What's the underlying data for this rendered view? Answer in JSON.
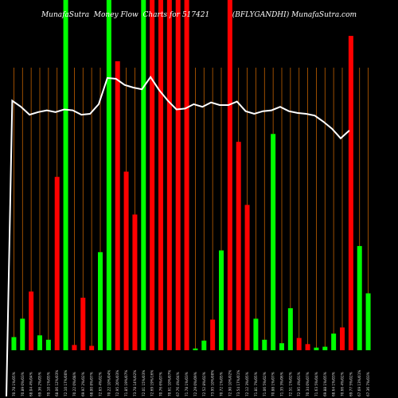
{
  "header": {
    "site": "MunafaSutra",
    "chart_title": "Money Flow  Charts for 517421",
    "symbol": "(BFLYGANDHI) MunafaSutra.com"
  },
  "chart_data": {
    "type": "bar",
    "title": "MunafaSutra  Money Flow  Charts for 517421",
    "subtitle": "(BFLYGANDHI) MunafaSutra.com",
    "xlabel": "",
    "ylabel": "",
    "grid": true,
    "legend": "none",
    "colors": {
      "up": "#00ff00",
      "down": "#ff0000",
      "line": "#ffffff",
      "grid": "#c06000",
      "background": "#000000"
    },
    "categories": [
      "70.78 1%/05%",
      "70.89 0%/03%",
      "68.04 4%/04%",
      "69.36 2%/05%",
      "70.10 1%/05%",
      "68.06 12%/03%",
      "72.10 17%/00%",
      "70.22 0%/08%",
      "69.97 2%/02%",
      "68.00 8%/07%",
      "72.65 4%/02%",
      "70.22 10%/04%",
      "72.95 20%/03%",
      "71.85 19%/07%",
      "73.78 14%/02%",
      "72.01 15%/03%",
      "72.69 19%/16%",
      "70.76 6%/07%",
      "70.61 10%/07%",
      "67.76 4%/04%",
      "71.78 1%/03%",
      "72.29 0%/09%",
      "72.52 8%/02%",
      "73.95 10%/00%",
      "70.72 1%/05%",
      "72.90 10%/02%",
      "73.54 17%/01%",
      "72.12 3%/05%",
      "71.81 7%/05%",
      "71.06 5%/02%",
      "70.88 1%/07%",
      "71.35 3%/06%",
      "72.51 1%/02%",
      "72.95 4%/01%",
      "70.34 0%/07%",
      "71.63 5%/04%",
      "69.88 1%/05%",
      "68.64 1%/03%",
      "70.66 4%/02%",
      "69.77 5%/02%",
      "67.69 13%/01%",
      "67.36 7%/03%"
    ],
    "series": [
      {
        "values": [
          15,
          36,
          67,
          17,
          12,
          198,
          400,
          6,
          60,
          5,
          112,
          400,
          330,
          204,
          155,
          400,
          400,
          400,
          400,
          400,
          400,
          2,
          11,
          35,
          114,
          400,
          238,
          166,
          36,
          12,
          247,
          8,
          48,
          14,
          7,
          3,
          4,
          19,
          26,
          359,
          119,
          65
        ]
      }
    ],
    "bar_direction": [
      "up",
      "up",
      "down",
      "up",
      "up",
      "down",
      "up",
      "down",
      "down",
      "down",
      "up",
      "up",
      "down",
      "down",
      "down",
      "up",
      "down",
      "down",
      "down",
      "down",
      "down",
      "up",
      "up",
      "down",
      "up",
      "down",
      "down",
      "down",
      "up",
      "up",
      "up",
      "up",
      "up",
      "down",
      "down",
      "up",
      "up",
      "up",
      "down",
      "down",
      "up",
      "up"
    ],
    "line_values": [
      0,
      255,
      262,
      266,
      263,
      266,
      262,
      265,
      264,
      266,
      268,
      261,
      264,
      258,
      248,
      249,
      252,
      255,
      255,
      258,
      256,
      254,
      251,
      250,
      253,
      255,
      257,
      256,
      259,
      262,
      264,
      258,
      243,
      237,
      230,
      236,
      252,
      231,
      236,
      230,
      196,
      200,
      262,
      266,
      270,
      271,
      275,
      245,
      250
    ],
    "line_series": [
      {
        "x": 0,
        "y": 0
      },
      {
        "x": 1,
        "y": 285
      },
      {
        "x": 2,
        "y": 278
      },
      {
        "x": 3,
        "y": 269
      },
      {
        "x": 4,
        "y": 272
      },
      {
        "x": 5,
        "y": 274
      },
      {
        "x": 6,
        "y": 272
      },
      {
        "x": 7,
        "y": 275
      },
      {
        "x": 8,
        "y": 274
      },
      {
        "x": 9,
        "y": 269
      },
      {
        "x": 10,
        "y": 270
      },
      {
        "x": 11,
        "y": 281
      },
      {
        "x": 12,
        "y": 311
      },
      {
        "x": 13,
        "y": 310
      },
      {
        "x": 14,
        "y": 303
      },
      {
        "x": 15,
        "y": 300
      },
      {
        "x": 16,
        "y": 298
      },
      {
        "x": 17,
        "y": 312
      },
      {
        "x": 18,
        "y": 297
      },
      {
        "x": 19,
        "y": 285
      },
      {
        "x": 20,
        "y": 275
      },
      {
        "x": 21,
        "y": 276
      },
      {
        "x": 22,
        "y": 281
      },
      {
        "x": 23,
        "y": 278
      },
      {
        "x": 24,
        "y": 283
      },
      {
        "x": 25,
        "y": 280
      },
      {
        "x": 26,
        "y": 280
      },
      {
        "x": 27,
        "y": 284
      },
      {
        "x": 28,
        "y": 273
      },
      {
        "x": 29,
        "y": 270
      },
      {
        "x": 30,
        "y": 273
      },
      {
        "x": 31,
        "y": 274
      },
      {
        "x": 32,
        "y": 278
      },
      {
        "x": 33,
        "y": 273
      },
      {
        "x": 34,
        "y": 271
      },
      {
        "x": 35,
        "y": 270
      },
      {
        "x": 36,
        "y": 268
      },
      {
        "x": 37,
        "y": 261
      },
      {
        "x": 38,
        "y": 253
      },
      {
        "x": 39,
        "y": 242
      },
      {
        "x": 40,
        "y": 251
      }
    ]
  }
}
